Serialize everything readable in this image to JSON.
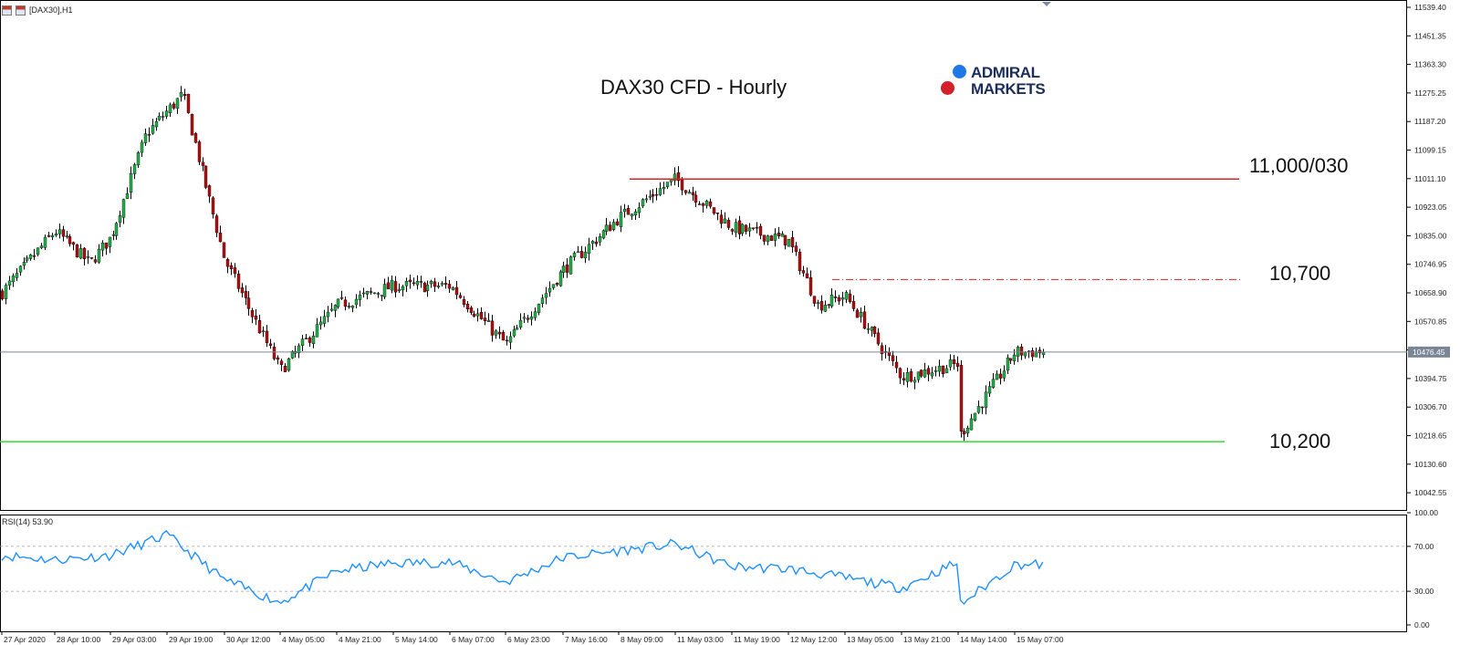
{
  "window": {
    "caption": "[DAX30],H1"
  },
  "title": "DAX30 CFD - Hourly",
  "brand": {
    "line1": "ADMIRAL",
    "line2": "MARKETS",
    "dot1_color": "#1e78e6",
    "dot2_color": "#d3202b"
  },
  "colors": {
    "bull": "#22b14c",
    "bear": "#b40f0f",
    "wick": "#000000",
    "rsi": "#1e90ff",
    "resistance": "#e02020",
    "support": "#33dd33",
    "current": "#7a8696"
  },
  "chart_data": [
    {
      "type": "candlestick",
      "symbol": "DAX30",
      "timeframe": "H1",
      "price_axis": {
        "ticks": [
          11539.4,
          11451.35,
          11363.3,
          11275.25,
          11187.2,
          11099.15,
          11011.1,
          10923.05,
          10835.0,
          10746.95,
          10658.9,
          10570.85,
          10482.8,
          10394.75,
          10306.7,
          10218.65,
          10130.6,
          10042.55
        ]
      },
      "time_axis": {
        "labels": [
          "27 Apr 2020",
          "28 Apr 10:00",
          "29 Apr 03:00",
          "29 Apr 19:00",
          "30 Apr 12:00",
          "4 May 05:00",
          "4 May 21:00",
          "5 May 14:00",
          "6 May 07:00",
          "6 May 23:00",
          "7 May 16:00",
          "8 May 09:00",
          "11 May 03:00",
          "11 May 19:00",
          "12 May 12:00",
          "13 May 05:00",
          "13 May 21:00",
          "14 May 14:00",
          "15 May 07:00"
        ]
      },
      "current_price": 10476.45,
      "key_points": [
        {
          "label": "27 Apr 2020",
          "close": 10660
        },
        {
          "label": "28 Apr 10:00",
          "close": 10850
        },
        {
          "label": "28 Apr 19:00",
          "close": 10750
        },
        {
          "label": "29 Apr 03:00",
          "close": 10830
        },
        {
          "label": "29 Apr 12:00",
          "close": 11150
        },
        {
          "label": "29 Apr 23:00",
          "close": 11270
        },
        {
          "label": "30 Apr 12:00",
          "close": 10760
        },
        {
          "label": "4 May 05:00",
          "close": 10420
        },
        {
          "label": "4 May 21:00",
          "close": 10620
        },
        {
          "label": "5 May 14:00",
          "close": 10680
        },
        {
          "label": "6 May 07:00",
          "close": 10680
        },
        {
          "label": "6 May 23:00",
          "close": 10500
        },
        {
          "label": "7 May 16:00",
          "close": 10730
        },
        {
          "label": "8 May 09:00",
          "close": 10890
        },
        {
          "label": "11 May 03:00",
          "close": 11010
        },
        {
          "label": "11 May 19:00",
          "close": 10860
        },
        {
          "label": "12 May 12:00",
          "close": 10820
        },
        {
          "label": "12 May 20:00",
          "close": 10620
        },
        {
          "label": "13 May 05:00",
          "close": 10650
        },
        {
          "label": "13 May 21:00",
          "close": 10400
        },
        {
          "label": "14 May 09:00",
          "close": 10220
        },
        {
          "label": "14 May 14:00",
          "close": 10440
        },
        {
          "label": "15 May 07:00",
          "close": 10476
        }
      ],
      "levels": [
        {
          "value": 11010,
          "label": "11,000/030",
          "style": "solid",
          "color": "#e02020"
        },
        {
          "value": 10700,
          "label": "10,700",
          "style": "dash-dot",
          "color": "#e02020"
        },
        {
          "value": 10200,
          "label": "10,200",
          "style": "solid",
          "color": "#33dd33"
        }
      ]
    },
    {
      "type": "line",
      "name": "RSI(14)",
      "indicator": "RSI(14) 53.90",
      "current": 53.9,
      "ylim": [
        0,
        100
      ],
      "ticks": [
        "100.00",
        "70.00",
        "30.00",
        "0.00"
      ],
      "levels": [
        70,
        30
      ],
      "key_points": [
        {
          "label": "27 Apr 2020",
          "value": 62
        },
        {
          "label": "28 Apr 10:00",
          "value": 58
        },
        {
          "label": "29 Apr 03:00",
          "value": 62
        },
        {
          "label": "29 Apr 19:00",
          "value": 80
        },
        {
          "label": "30 Apr 12:00",
          "value": 40
        },
        {
          "label": "4 May 05:00",
          "value": 20
        },
        {
          "label": "4 May 21:00",
          "value": 48
        },
        {
          "label": "5 May 14:00",
          "value": 55
        },
        {
          "label": "6 May 07:00",
          "value": 56
        },
        {
          "label": "6 May 23:00",
          "value": 38
        },
        {
          "label": "7 May 16:00",
          "value": 60
        },
        {
          "label": "8 May 09:00",
          "value": 66
        },
        {
          "label": "11 May 03:00",
          "value": 72
        },
        {
          "label": "11 May 19:00",
          "value": 52
        },
        {
          "label": "12 May 12:00",
          "value": 50
        },
        {
          "label": "13 May 05:00",
          "value": 42
        },
        {
          "label": "13 May 21:00",
          "value": 33
        },
        {
          "label": "14 May 09:00",
          "value": 18
        },
        {
          "label": "14 May 14:00",
          "value": 56
        },
        {
          "label": "15 May 07:00",
          "value": 53.9
        }
      ]
    }
  ]
}
